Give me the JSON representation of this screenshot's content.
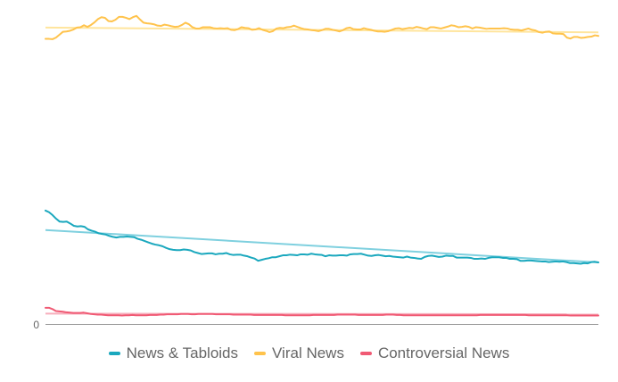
{
  "chart_data": {
    "type": "line",
    "title": "",
    "xlabel": "",
    "ylabel": "",
    "ylim": [
      0,
      100
    ],
    "y_ticks": [
      "0"
    ],
    "grid": false,
    "legend_position": "bottom",
    "series": [
      {
        "name": "News & Tabloids",
        "color": "#1ba8be",
        "trend_color": "#7fd0df",
        "trend": [
          29.0,
          19.0
        ],
        "values": [
          35.0,
          34.5,
          33.6,
          32.5,
          31.6,
          31.5,
          31.6,
          31.0,
          30.3,
          30.1,
          30.2,
          30.0,
          29.2,
          28.8,
          28.5,
          28.0,
          27.8,
          27.6,
          27.2,
          26.9,
          26.7,
          26.9,
          26.9,
          27.0,
          26.9,
          26.8,
          26.3,
          26.0,
          25.6,
          25.2,
          24.8,
          24.5,
          24.3,
          24.0,
          23.5,
          23.1,
          22.9,
          22.8,
          22.8,
          23.0,
          22.9,
          22.7,
          22.2,
          21.9,
          21.6,
          21.7,
          21.8,
          21.8,
          21.5,
          21.7,
          21.7,
          21.9,
          21.5,
          21.3,
          21.4,
          21.4,
          21.1,
          20.9,
          20.5,
          20.2,
          19.5,
          19.8,
          20.1,
          20.3,
          20.6,
          20.6,
          20.9,
          21.2,
          21.2,
          21.4,
          21.3,
          21.2,
          21.5,
          21.5,
          21.4,
          21.7,
          21.5,
          21.4,
          21.3,
          20.9,
          21.2,
          21.1,
          21.1,
          21.2,
          21.2,
          21.1,
          21.5,
          21.6,
          21.6,
          21.7,
          21.4,
          21.1,
          21.0,
          21.2,
          21.3,
          21.1,
          20.9,
          21.0,
          20.8,
          20.7,
          20.6,
          20.5,
          20.8,
          20.5,
          20.4,
          20.2,
          20.1,
          20.7,
          21.0,
          21.1,
          20.9,
          20.7,
          20.8,
          21.1,
          21.0,
          21.0,
          20.5,
          20.5,
          20.5,
          20.5,
          20.4,
          20.1,
          20.1,
          20.2,
          20.1,
          20.4,
          20.6,
          20.6,
          20.6,
          20.4,
          20.4,
          20.1,
          20.1,
          20.0,
          19.5,
          19.5,
          19.6,
          19.6,
          19.5,
          19.4,
          19.3,
          19.3,
          19.1,
          19.2,
          19.3,
          19.2,
          19.3,
          19.1,
          18.8,
          18.8,
          18.7,
          18.6,
          18.8,
          18.7,
          19.1,
          19.2,
          19.0
        ]
      },
      {
        "name": "Viral News",
        "color": "#ffc34c",
        "trend_color": "#ffe59d",
        "trend": [
          91.5,
          90.0
        ],
        "values": [
          88.0,
          88.0,
          87.9,
          88.4,
          89.3,
          90.2,
          90.3,
          90.5,
          90.9,
          91.5,
          91.6,
          92.2,
          91.7,
          92.3,
          93.1,
          94.1,
          94.7,
          94.5,
          93.5,
          93.4,
          93.9,
          94.8,
          94.8,
          94.5,
          94.1,
          94.7,
          95.1,
          94.0,
          93.0,
          92.8,
          92.7,
          92.5,
          92.1,
          92.0,
          92.4,
          92.2,
          91.9,
          91.7,
          91.8,
          92.3,
          93.0,
          92.5,
          91.6,
          91.2,
          91.2,
          91.6,
          91.6,
          91.6,
          91.3,
          91.2,
          91.3,
          91.2,
          91.3,
          90.8,
          90.7,
          91.0,
          91.6,
          91.4,
          91.3,
          90.8,
          90.9,
          91.3,
          90.8,
          90.5,
          90.1,
          90.4,
          91.2,
          91.4,
          91.3,
          91.6,
          91.7,
          92.1,
          91.7,
          91.3,
          91.0,
          90.9,
          90.7,
          90.6,
          90.4,
          90.7,
          91.1,
          91.1,
          90.8,
          90.6,
          90.3,
          90.7,
          91.3,
          91.5,
          91.0,
          90.9,
          90.9,
          91.3,
          91.0,
          90.8,
          90.5,
          90.3,
          90.3,
          90.2,
          90.4,
          90.8,
          91.2,
          91.3,
          91.0,
          91.2,
          91.4,
          91.3,
          91.7,
          91.5,
          91.2,
          91.0,
          91.6,
          91.6,
          91.4,
          91.2,
          91.5,
          91.8,
          92.2,
          92.0,
          91.6,
          91.7,
          91.9,
          91.7,
          91.2,
          91.6,
          91.5,
          91.3,
          91.1,
          91.2,
          91.2,
          91.2,
          91.2,
          91.3,
          91.2,
          90.9,
          90.8,
          90.8,
          90.6,
          90.9,
          91.2,
          90.8,
          90.6,
          90.1,
          89.9,
          90.2,
          90.3,
          89.7,
          89.6,
          89.6,
          89.5,
          88.4,
          88.1,
          88.6,
          88.6,
          88.3,
          88.4,
          88.6,
          88.7,
          89.1,
          88.9
        ]
      },
      {
        "name": "Controversial News",
        "color": "#f05a74",
        "trend_color": "#f7aebc",
        "trend": [
          3.2,
          3.0
        ],
        "values": [
          5.0,
          5.0,
          4.6,
          4.0,
          3.9,
          3.8,
          3.6,
          3.5,
          3.4,
          3.4,
          3.4,
          3.5,
          3.3,
          3.1,
          3.0,
          2.9,
          2.9,
          2.8,
          2.7,
          2.7,
          2.7,
          2.7,
          2.6,
          2.7,
          2.7,
          2.8,
          2.7,
          2.7,
          2.7,
          2.7,
          2.8,
          2.8,
          2.8,
          2.9,
          2.9,
          3.0,
          3.0,
          3.0,
          3.0,
          3.1,
          3.1,
          3.1,
          3.0,
          3.0,
          3.1,
          3.1,
          3.1,
          3.1,
          3.1,
          3.0,
          3.0,
          3.0,
          3.0,
          3.0,
          2.9,
          2.9,
          2.9,
          2.9,
          2.9,
          2.9,
          2.8,
          2.8,
          2.8,
          2.8,
          2.8,
          2.8,
          2.8,
          2.8,
          2.8,
          2.7,
          2.7,
          2.7,
          2.7,
          2.7,
          2.7,
          2.7,
          2.7,
          2.8,
          2.8,
          2.8,
          2.8,
          2.8,
          2.8,
          2.8,
          2.9,
          2.9,
          2.9,
          2.9,
          2.9,
          2.9,
          2.8,
          2.8,
          2.8,
          2.8,
          2.8,
          2.8,
          2.8,
          2.8,
          2.9,
          2.9,
          2.9,
          2.8,
          2.8,
          2.7,
          2.7,
          2.7,
          2.7,
          2.7,
          2.7,
          2.7,
          2.7,
          2.7,
          2.7,
          2.7,
          2.7,
          2.7,
          2.7,
          2.7,
          2.7,
          2.7,
          2.7,
          2.7,
          2.7,
          2.7,
          2.7,
          2.8,
          2.8,
          2.8,
          2.8,
          2.8,
          2.8,
          2.8,
          2.8,
          2.8,
          2.8,
          2.8,
          2.8,
          2.8,
          2.8,
          2.7,
          2.7,
          2.7,
          2.7,
          2.7,
          2.7,
          2.7,
          2.7,
          2.7,
          2.7,
          2.7,
          2.7,
          2.6,
          2.6,
          2.6,
          2.6,
          2.6,
          2.6,
          2.6,
          2.6,
          2.6
        ]
      }
    ]
  }
}
